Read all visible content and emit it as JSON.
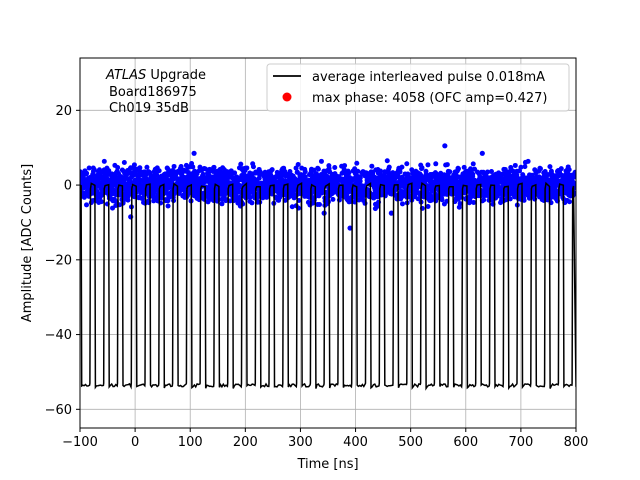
{
  "chart_data": {
    "type": "line",
    "xlabel": "Time [ns]",
    "ylabel": "Amplitude [ADC Counts]",
    "xlim": [
      -100,
      800
    ],
    "ylim": [
      -65,
      34
    ],
    "xticks": [
      -100,
      0,
      100,
      200,
      300,
      400,
      500,
      600,
      700,
      800
    ],
    "yticks": [
      20,
      0,
      -20,
      -40,
      -60
    ],
    "xtick_labels": [
      "−100",
      "0",
      "100",
      "200",
      "300",
      "400",
      "500",
      "600",
      "700",
      "800"
    ],
    "ytick_labels": [
      "20",
      "0",
      "−20",
      "−40",
      "−60"
    ],
    "grid": true,
    "annotation": {
      "line1_italic": "ATLAS",
      "line1_rest": " Upgrade",
      "line2": "Board186975",
      "line3": "Ch019 35dB"
    },
    "legend": {
      "position": "top-right",
      "entries": [
        {
          "label": "average interleaved pulse 0.018mA",
          "color": "#000000",
          "marker": "line"
        },
        {
          "label": "max phase: 4058 (OFC amp=0.427)",
          "color": "#ff0000",
          "marker": "dot"
        }
      ]
    },
    "series": [
      {
        "name": "average interleaved pulse 0.018mA",
        "color": "#000000",
        "kind": "square-pulse-train",
        "period_ns": 25,
        "first_fall_ns": -98,
        "high_duration_ns": 8,
        "high_value": 0,
        "low_value": -54,
        "baseline_noise": 5
      },
      {
        "name": "blue samples",
        "color": "#0000ff",
        "kind": "scatter-band",
        "center": 0,
        "half_width": 6,
        "outliers": [
          {
            "x": 390,
            "y": -11.5
          },
          {
            "x": 562,
            "y": 10.5
          },
          {
            "x": 107,
            "y": 8.5
          },
          {
            "x": -8,
            "y": -8.5
          },
          {
            "x": 343,
            "y": -7.5
          },
          {
            "x": 465,
            "y": -7.5
          },
          {
            "x": 630,
            "y": 8.5
          }
        ]
      }
    ]
  }
}
